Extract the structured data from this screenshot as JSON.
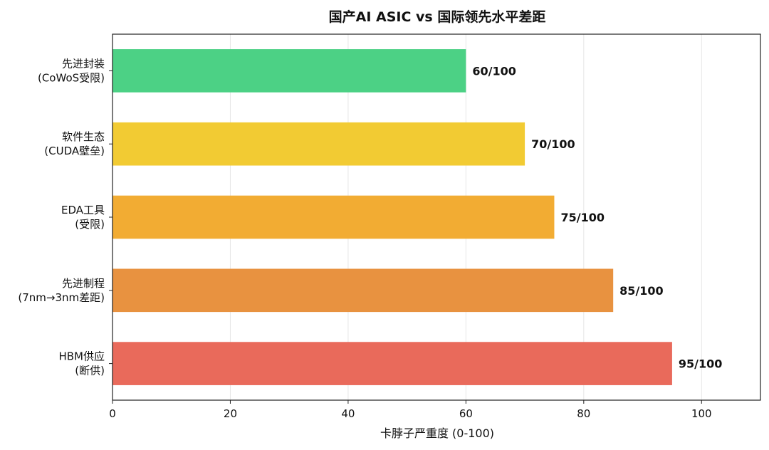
{
  "chart_data": {
    "type": "bar",
    "orientation": "horizontal",
    "title": "国产AI ASIC vs 国际领先水平差距",
    "xlabel": "卡脖子严重度 (0-100)",
    "ylabel": "",
    "xlim": [
      0,
      110
    ],
    "xticks": [
      0,
      20,
      40,
      60,
      80,
      100
    ],
    "grid": "vertical",
    "categories": [
      [
        "先进封装",
        "(CoWoS受限)"
      ],
      [
        "软件生态",
        "(CUDA壁垒)"
      ],
      [
        "EDA工具",
        "(受限)"
      ],
      [
        "先进制程",
        "(7nm→3nm差距)"
      ],
      [
        "HBM供应",
        "(断供)"
      ]
    ],
    "values": [
      60,
      70,
      75,
      85,
      95
    ],
    "data_labels": [
      "60/100",
      "70/100",
      "75/100",
      "85/100",
      "95/100"
    ],
    "colors": [
      "#4cd185",
      "#f2cb33",
      "#f2ac33",
      "#e89240",
      "#e96a5b"
    ]
  }
}
